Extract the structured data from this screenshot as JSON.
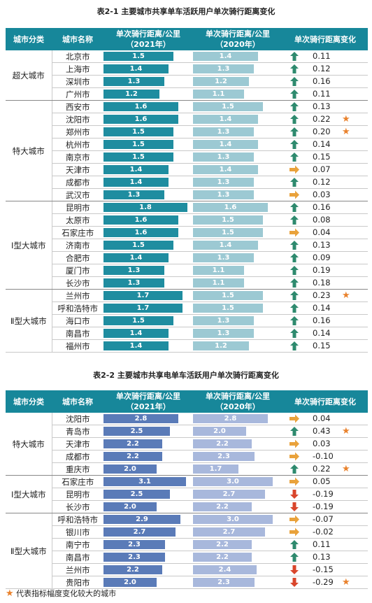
{
  "table1": {
    "title": "表2-1 主要城市共享单车活跃用户单次骑行距离变化",
    "headers": {
      "category": "城市分类",
      "city": "城市名称",
      "y2021_line1": "单次骑行距离/公里",
      "y2021_line2": "（2021年）",
      "y2020_line1": "单次骑行距离/公里",
      "y2020_line2": "（2020年）",
      "change": "单次骑行距离变化"
    },
    "groups": [
      {
        "name": "超大城市",
        "rows": [
          {
            "city": "北京市",
            "v2021": "1.5",
            "v2020": "1.4",
            "trend": "up",
            "change": "0.11",
            "star": false
          },
          {
            "city": "上海市",
            "v2021": "1.4",
            "v2020": "1.3",
            "trend": "up",
            "change": "0.12",
            "star": false
          },
          {
            "city": "深圳市",
            "v2021": "1.3",
            "v2020": "1.2",
            "trend": "up",
            "change": "0.16",
            "star": false
          },
          {
            "city": "广州市",
            "v2021": "1.2",
            "v2020": "1.1",
            "trend": "up",
            "change": "0.11",
            "star": false
          }
        ]
      },
      {
        "name": "特大城市",
        "rows": [
          {
            "city": "西安市",
            "v2021": "1.6",
            "v2020": "1.5",
            "trend": "up",
            "change": "0.13",
            "star": false
          },
          {
            "city": "沈阳市",
            "v2021": "1.6",
            "v2020": "1.4",
            "trend": "up",
            "change": "0.22",
            "star": true
          },
          {
            "city": "郑州市",
            "v2021": "1.5",
            "v2020": "1.3",
            "trend": "up",
            "change": "0.20",
            "star": true
          },
          {
            "city": "杭州市",
            "v2021": "1.5",
            "v2020": "1.4",
            "trend": "up",
            "change": "0.14",
            "star": false
          },
          {
            "city": "南京市",
            "v2021": "1.5",
            "v2020": "1.3",
            "trend": "up",
            "change": "0.15",
            "star": false
          },
          {
            "city": "天津市",
            "v2021": "1.4",
            "v2020": "1.4",
            "trend": "flat",
            "change": "0.07",
            "star": false
          },
          {
            "city": "成都市",
            "v2021": "1.4",
            "v2020": "1.3",
            "trend": "up",
            "change": "0.12",
            "star": false
          },
          {
            "city": "武汉市",
            "v2021": "1.3",
            "v2020": "1.3",
            "trend": "flat",
            "change": "0.03",
            "star": false
          }
        ]
      },
      {
        "name": "Ⅰ型大城市",
        "rows": [
          {
            "city": "昆明市",
            "v2021": "1.8",
            "v2020": "1.6",
            "trend": "up",
            "change": "0.16",
            "star": false
          },
          {
            "city": "太原市",
            "v2021": "1.6",
            "v2020": "1.5",
            "trend": "up",
            "change": "0.08",
            "star": false
          },
          {
            "city": "石家庄市",
            "v2021": "1.6",
            "v2020": "1.5",
            "trend": "flat",
            "change": "0.04",
            "star": false
          },
          {
            "city": "济南市",
            "v2021": "1.5",
            "v2020": "1.4",
            "trend": "up",
            "change": "0.13",
            "star": false
          },
          {
            "city": "合肥市",
            "v2021": "1.4",
            "v2020": "1.3",
            "trend": "up",
            "change": "0.09",
            "star": false
          },
          {
            "city": "厦门市",
            "v2021": "1.3",
            "v2020": "1.1",
            "trend": "up",
            "change": "0.19",
            "star": false
          },
          {
            "city": "长沙市",
            "v2021": "1.3",
            "v2020": "1.1",
            "trend": "up",
            "change": "0.18",
            "star": false
          }
        ]
      },
      {
        "name": "Ⅱ型大城市",
        "rows": [
          {
            "city": "兰州市",
            "v2021": "1.7",
            "v2020": "1.5",
            "trend": "up",
            "change": "0.23",
            "star": true
          },
          {
            "city": "呼和浩特市",
            "v2021": "1.7",
            "v2020": "1.5",
            "trend": "up",
            "change": "0.14",
            "star": false
          },
          {
            "city": "海口市",
            "v2021": "1.5",
            "v2020": "1.3",
            "trend": "up",
            "change": "0.16",
            "star": false
          },
          {
            "city": "南昌市",
            "v2021": "1.4",
            "v2020": "1.3",
            "trend": "up",
            "change": "0.14",
            "star": false
          },
          {
            "city": "福州市",
            "v2021": "1.4",
            "v2020": "1.2",
            "trend": "up",
            "change": "0.15",
            "star": false
          }
        ]
      }
    ]
  },
  "table2": {
    "title": "表2-2 主要城市共享电单车活跃用户单次骑行距离变化",
    "headers": {
      "category": "城市分类",
      "city": "城市名称",
      "y2021_line1": "单次骑行距离/公里",
      "y2021_line2": "（2021年）",
      "y2020_line1": "单次骑行距离/公里",
      "y2020_line2": "（2020年）",
      "change": "单次骑行距离变化"
    },
    "groups": [
      {
        "name": "特大城市",
        "rows": [
          {
            "city": "沈阳市",
            "v2021": "2.8",
            "v2020": "2.8",
            "trend": "flat",
            "change": "0.04",
            "star": false
          },
          {
            "city": "青岛市",
            "v2021": "2.5",
            "v2020": "2.0",
            "trend": "up",
            "change": "0.43",
            "star": true
          },
          {
            "city": "天津市",
            "v2021": "2.2",
            "v2020": "2.2",
            "trend": "flat",
            "change": "0.03",
            "star": false
          },
          {
            "city": "成都市",
            "v2021": "2.2",
            "v2020": "2.3",
            "trend": "flat",
            "change": "-0.10",
            "star": false
          },
          {
            "city": "重庆市",
            "v2021": "2.0",
            "v2020": "1.7",
            "trend": "up",
            "change": "0.22",
            "star": true
          }
        ]
      },
      {
        "name": "Ⅰ型大城市",
        "rows": [
          {
            "city": "石家庄市",
            "v2021": "3.1",
            "v2020": "3.0",
            "trend": "flat",
            "change": "0.05",
            "star": false
          },
          {
            "city": "昆明市",
            "v2021": "2.5",
            "v2020": "2.7",
            "trend": "down",
            "change": "-0.19",
            "star": false
          },
          {
            "city": "长沙市",
            "v2021": "2.0",
            "v2020": "2.2",
            "trend": "down",
            "change": "-0.19",
            "star": false
          }
        ]
      },
      {
        "name": "Ⅱ型大城市",
        "rows": [
          {
            "city": "呼和浩特市",
            "v2021": "2.9",
            "v2020": "3.0",
            "trend": "flat",
            "change": "-0.07",
            "star": false
          },
          {
            "city": "银川市",
            "v2021": "2.7",
            "v2020": "2.7",
            "trend": "flat",
            "change": "-0.02",
            "star": false
          },
          {
            "city": "南宁市",
            "v2021": "2.3",
            "v2020": "2.2",
            "trend": "up",
            "change": "0.11",
            "star": false
          },
          {
            "city": "南昌市",
            "v2021": "2.3",
            "v2020": "2.2",
            "trend": "up",
            "change": "0.13",
            "star": false
          },
          {
            "city": "兰州市",
            "v2021": "2.2",
            "v2020": "2.4",
            "trend": "down",
            "change": "-0.15",
            "star": false
          },
          {
            "city": "贵阳市",
            "v2021": "2.0",
            "v2020": "2.3",
            "trend": "down",
            "change": "-0.29",
            "star": true
          }
        ]
      }
    ]
  },
  "legend": {
    "star_symbol": "★",
    "text": "代表指标幅度变化较大的城市"
  },
  "colors": {
    "header": "#17879a",
    "bike_2021": "#1f8da0",
    "bike_2020": "#9cc9d3",
    "ebike_2021": "#5a7bb8",
    "ebike_2020": "#a8b8dc",
    "arrow_up": "#2e8a6e",
    "arrow_flat": "#e9a23b",
    "arrow_down": "#d9452b",
    "star": "#e9822d"
  }
}
